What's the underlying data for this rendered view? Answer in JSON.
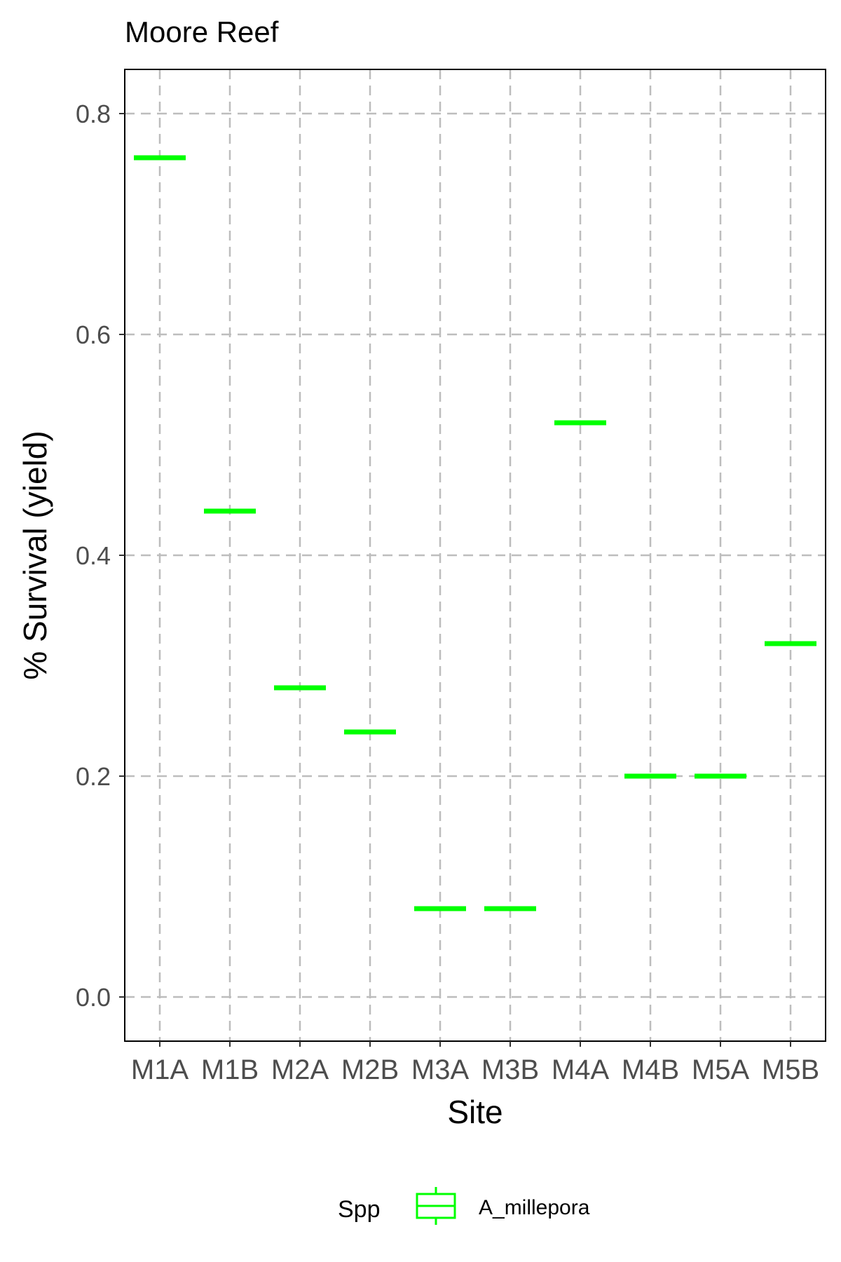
{
  "chart_data": {
    "type": "boxplot",
    "title": "Moore Reef",
    "xlabel": "Site",
    "ylabel": "% Survival (yield)",
    "categories": [
      "M1A",
      "M1B",
      "M2A",
      "M2B",
      "M3A",
      "M3B",
      "M4A",
      "M4B",
      "M5A",
      "M5B"
    ],
    "series": [
      {
        "name": "A_millepora",
        "values": [
          0.76,
          0.44,
          0.28,
          0.24,
          0.08,
          0.08,
          0.52,
          0.2,
          0.2,
          0.32
        ]
      }
    ],
    "ylim": [
      -0.04,
      0.84
    ],
    "yticks": [
      0.0,
      0.2,
      0.4,
      0.6,
      0.8
    ],
    "ytick_labels": [
      "0.0",
      "0.2",
      "0.4",
      "0.6",
      "0.8"
    ],
    "grid": true,
    "legend": {
      "title": "Spp",
      "position": "bottom",
      "entries": [
        "A_millepora"
      ]
    },
    "colors": {
      "A_millepora": "#00ff00",
      "grid": "#bdbdbd",
      "axis_text": "#4d4d4d"
    }
  }
}
